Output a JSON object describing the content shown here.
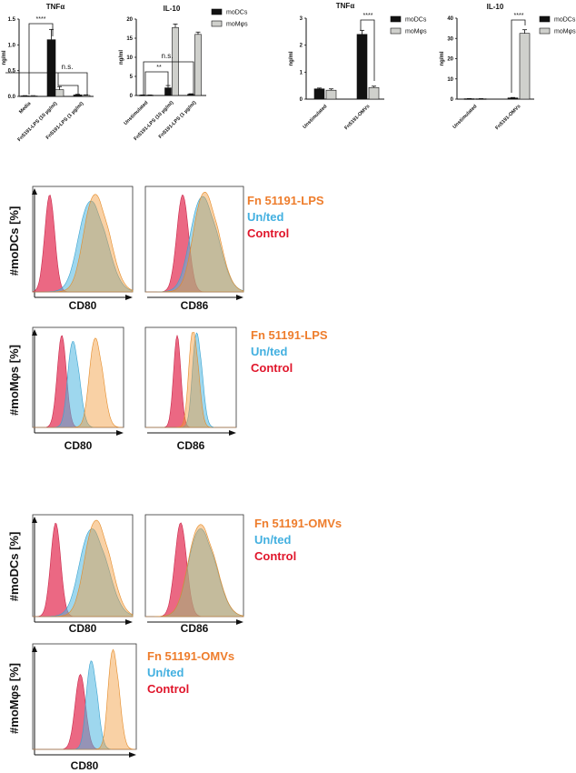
{
  "colors": {
    "moDC_bar": "#111111",
    "moM_bar": "#cfd0cc",
    "control": "#e4365a",
    "untreated": "#4fb7e0",
    "stimulated": "#f29a38",
    "green_overlap": "#8fb86a",
    "label_orange": "#ee7d2c",
    "label_blue": "#43b0e0",
    "label_red": "#e0162b"
  },
  "chart_data": [
    {
      "id": "tnf-lps",
      "type": "bar",
      "title": "TNFα",
      "ylabel": "ng/ml",
      "ylim": [
        0,
        1.5
      ],
      "yticks": [
        "0.0",
        "0.5",
        "1.0",
        "1.5"
      ],
      "categories": [
        "Media",
        "Fn5191-LPS (10 µg/ml)",
        "Fn5191-LPS (1 µg/ml)"
      ],
      "series": [
        {
          "key": "moDC",
          "values": [
            0.01,
            1.1,
            0.03
          ],
          "errors": [
            0.005,
            0.2,
            0.01
          ]
        },
        {
          "key": "moM",
          "values": [
            0.01,
            0.13,
            0.02
          ],
          "errors": [
            0.005,
            0.06,
            0.01
          ]
        }
      ],
      "annotations": [
        "****",
        "n.s."
      ]
    },
    {
      "id": "il10-lps",
      "type": "bar",
      "title": "IL-10",
      "ylabel": "ng/ml",
      "ylim": [
        0,
        20
      ],
      "yticks": [
        "0",
        "5",
        "10",
        "15",
        "20"
      ],
      "categories": [
        "Unstimulated",
        "Fn5191-LPS (10 µg/ml)",
        "Fn5191-LPS (1 µg/ml)"
      ],
      "series": [
        {
          "name": "moDCs",
          "key": "moDC",
          "values": [
            0.1,
            2.0,
            0.3
          ],
          "errors": [
            0.05,
            0.6,
            0.15
          ]
        },
        {
          "name": "moMφs",
          "key": "moM",
          "values": [
            0.1,
            17.8,
            16.0
          ],
          "errors": [
            0.05,
            0.9,
            0.6
          ]
        }
      ],
      "annotations": [
        "n.s.",
        "**"
      ],
      "legend": "top-right"
    },
    {
      "id": "tnf-omv",
      "type": "bar",
      "title": "TNFα",
      "ylabel": "ng/ml",
      "ylim": [
        0,
        3
      ],
      "yticks": [
        "0",
        "1",
        "2",
        "3"
      ],
      "categories": [
        "Unstimulated",
        "Fn5191-OMVs"
      ],
      "series": [
        {
          "name": "moDCs",
          "key": "moDC",
          "values": [
            0.38,
            2.4
          ],
          "errors": [
            0.03,
            0.15
          ]
        },
        {
          "name": "moMφs",
          "key": "moM",
          "values": [
            0.33,
            0.43
          ],
          "errors": [
            0.05,
            0.05
          ]
        }
      ],
      "annotations": [
        "****"
      ],
      "legend": "top-right"
    },
    {
      "id": "il10-omv",
      "type": "bar",
      "title": "IL-10",
      "ylabel": "ng/ml",
      "ylim": [
        0,
        40
      ],
      "yticks": [
        "0",
        "10",
        "20",
        "30",
        "40"
      ],
      "categories": [
        "Unstimulated",
        "Fn5191-OMVs"
      ],
      "series": [
        {
          "name": "moDCs",
          "key": "moDC",
          "values": [
            0.2,
            0.6
          ],
          "errors": [
            0.1,
            0.2
          ]
        },
        {
          "name": "moMφs",
          "key": "moM",
          "values": [
            0.2,
            32.5
          ],
          "errors": [
            0.1,
            1.8
          ]
        }
      ],
      "annotations": [
        "****"
      ],
      "legend": "top-right"
    }
  ],
  "histograms": {
    "groups": [
      {
        "id": "lps-modc",
        "ylabel": "#moDCs [%]",
        "legend": [
          "Fn 51191-LPS",
          "Un/ted",
          "Control"
        ],
        "panels": [
          {
            "xlabel": "CD80",
            "peaks": {
              "control": [
                0.17,
                0.05,
                0.97
              ],
              "untreated": [
                0.62,
                0.13,
                0.82
              ],
              "stimulated": [
                0.66,
                0.12,
                0.88
              ]
            }
          },
          {
            "xlabel": "CD86",
            "peaks": {
              "control": [
                0.38,
                0.06,
                0.97
              ],
              "untreated": [
                0.62,
                0.13,
                0.86
              ],
              "stimulated": [
                0.64,
                0.12,
                0.9
              ]
            }
          }
        ]
      },
      {
        "id": "lps-mom",
        "ylabel": "#moMφs [%]",
        "legend": [
          "Fn 51191-LPS",
          "Un/ted",
          "Control"
        ],
        "panels": [
          {
            "xlabel": "CD80",
            "peaks": {
              "control": [
                0.32,
                0.05,
                0.97
              ],
              "untreated": [
                0.46,
                0.06,
                0.82
              ],
              "stimulated": [
                0.71,
                0.07,
                0.85
              ]
            }
          },
          {
            "xlabel": "CD86",
            "peaks": {
              "control": [
                0.35,
                0.04,
                0.97
              ],
              "untreated": [
                0.58,
                0.05,
                0.9
              ],
              "stimulated": [
                0.54,
                0.05,
                0.93
              ]
            }
          }
        ]
      },
      {
        "id": "omv-modc",
        "ylabel": "#moDCs [%]",
        "legend": [
          "Fn 51191-OMVs",
          "Un/ted",
          "Control"
        ],
        "panels": [
          {
            "xlabel": "CD80",
            "peaks": {
              "control": [
                0.23,
                0.05,
                0.97
              ],
              "untreated": [
                0.63,
                0.13,
                0.82
              ],
              "stimulated": [
                0.67,
                0.12,
                0.9
              ]
            }
          },
          {
            "xlabel": "CD86",
            "peaks": {
              "control": [
                0.36,
                0.06,
                0.97
              ],
              "untreated": [
                0.6,
                0.13,
                0.82
              ],
              "stimulated": [
                0.6,
                0.13,
                0.86
              ]
            }
          }
        ]
      },
      {
        "id": "omv-mom",
        "ylabel": "#moMφs [%]",
        "legend": [
          "Fn 51191-OMVs",
          "Un/ted",
          "Control"
        ],
        "panels": [
          {
            "xlabel": "CD80",
            "peaks": {
              "control": [
                0.46,
                0.05,
                0.75
              ],
              "untreated": [
                0.58,
                0.05,
                0.8
              ],
              "stimulated": [
                0.79,
                0.05,
                0.9
              ]
            }
          }
        ]
      }
    ]
  }
}
